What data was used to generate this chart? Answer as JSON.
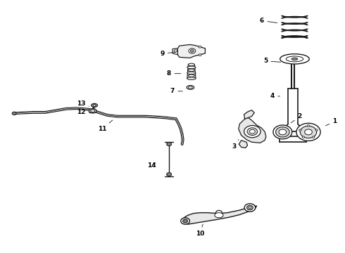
{
  "background_color": "#ffffff",
  "line_color": "#1a1a1a",
  "fig_width": 4.9,
  "fig_height": 3.6,
  "dpi": 100,
  "label_positions": {
    "1": {
      "text": [
        0.972,
        0.52
      ],
      "arrow": [
        0.94,
        0.5
      ]
    },
    "2": {
      "text": [
        0.87,
        0.54
      ],
      "arrow": [
        0.84,
        0.51
      ]
    },
    "3": {
      "text": [
        0.68,
        0.42
      ],
      "arrow": [
        0.695,
        0.455
      ]
    },
    "4": {
      "text": [
        0.79,
        0.62
      ],
      "arrow": [
        0.818,
        0.62
      ]
    },
    "5": {
      "text": [
        0.77,
        0.76
      ],
      "arrow": [
        0.82,
        0.755
      ]
    },
    "6": {
      "text": [
        0.76,
        0.92
      ],
      "arrow": [
        0.81,
        0.91
      ]
    },
    "7": {
      "text": [
        0.5,
        0.64
      ],
      "arrow": [
        0.535,
        0.64
      ]
    },
    "8": {
      "text": [
        0.49,
        0.71
      ],
      "arrow": [
        0.53,
        0.71
      ]
    },
    "9": {
      "text": [
        0.47,
        0.79
      ],
      "arrow": [
        0.515,
        0.795
      ]
    },
    "10": {
      "text": [
        0.58,
        0.075
      ],
      "arrow": [
        0.59,
        0.12
      ]
    },
    "11": {
      "text": [
        0.295,
        0.49
      ],
      "arrow": [
        0.33,
        0.53
      ]
    },
    "12": {
      "text": [
        0.235,
        0.558
      ],
      "arrow": [
        0.268,
        0.553
      ]
    },
    "13": {
      "text": [
        0.235,
        0.592
      ],
      "arrow": [
        0.258,
        0.58
      ]
    },
    "14": {
      "text": [
        0.44,
        0.345
      ],
      "arrow": [
        0.455,
        0.36
      ]
    }
  }
}
